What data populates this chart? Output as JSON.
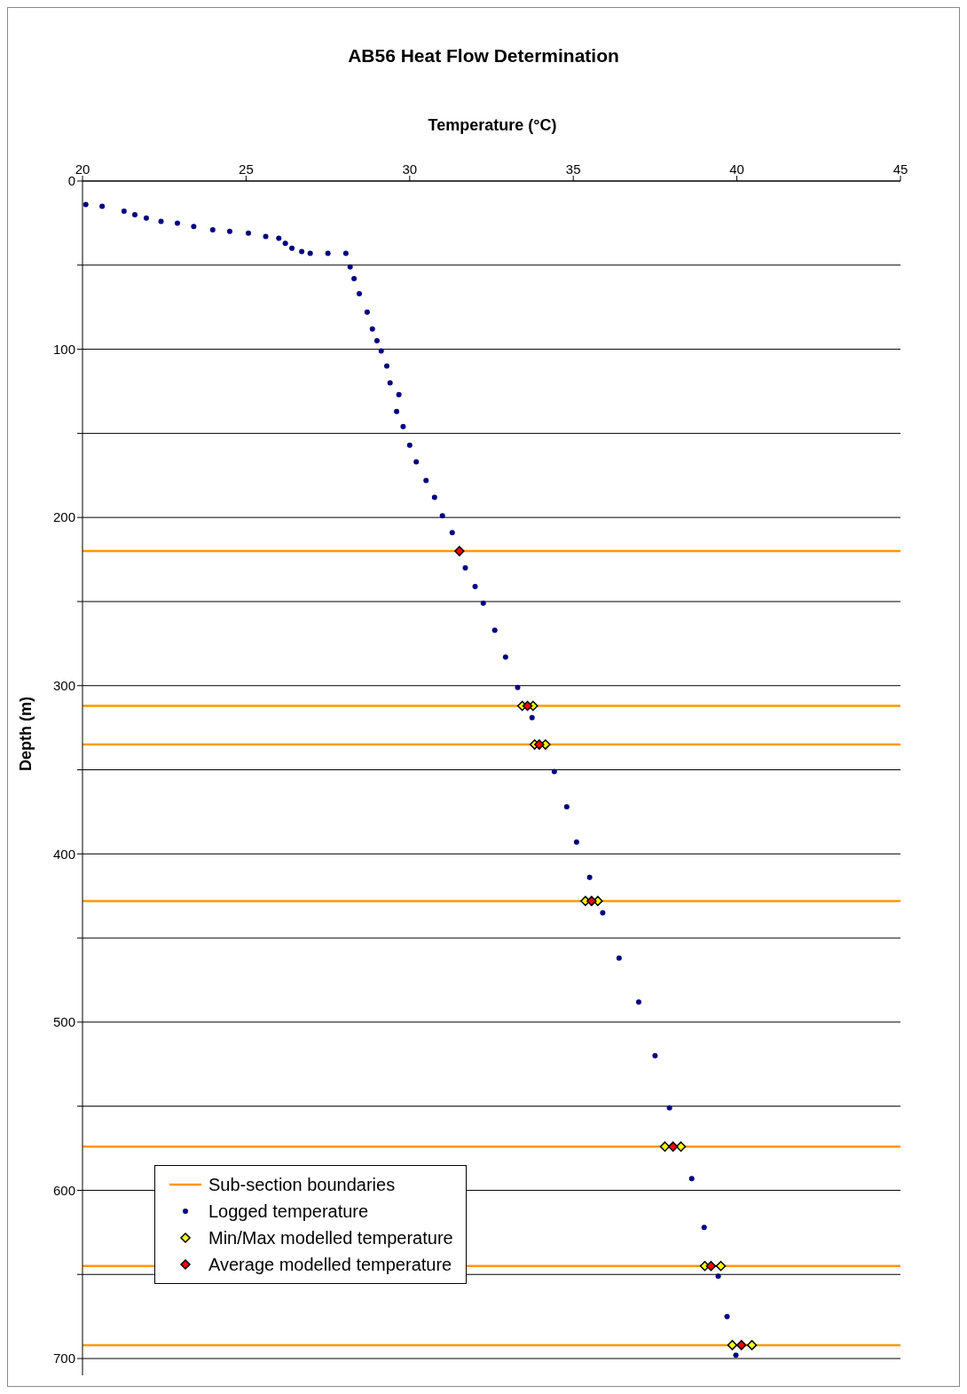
{
  "chart_data": {
    "type": "scatter",
    "title": "AB56 Heat Flow Determination",
    "xlabel": "Temperature (°C)",
    "ylabel": "Depth (m)",
    "xlim": [
      20,
      45
    ],
    "xticks": [
      20,
      25,
      30,
      35,
      40,
      45
    ],
    "ylim": [
      710,
      0
    ],
    "yticks": [
      0,
      {
        "value": 50,
        "label": null
      },
      100,
      {
        "value": 150,
        "label": null
      },
      200,
      {
        "value": 250,
        "label": null
      },
      300,
      {
        "value": 350,
        "label": null
      },
      400,
      {
        "value": 450,
        "label": null
      },
      500,
      {
        "value": 550,
        "label": null
      },
      600,
      {
        "value": 650,
        "label": null
      },
      700
    ],
    "grid": "y",
    "legend": "bottom left",
    "ref_lines": [
      {
        "axis": "y",
        "value": 220,
        "label": "Sub-section boundaries",
        "color": "#ff9900"
      },
      {
        "axis": "y",
        "value": 312,
        "color": "#ff9900"
      },
      {
        "axis": "y",
        "value": 335,
        "color": "#ff9900"
      },
      {
        "axis": "y",
        "value": 428,
        "color": "#ff9900"
      },
      {
        "axis": "y",
        "value": 574,
        "color": "#ff9900"
      },
      {
        "axis": "y",
        "value": 645,
        "color": "#ff9900"
      },
      {
        "axis": "y",
        "value": 692,
        "color": "#ff9900"
      }
    ],
    "series": [
      {
        "name": "Logged temperature",
        "marker": "circle",
        "color": "#000080",
        "x": [
          20.1,
          20.6,
          21.27,
          21.6,
          21.95,
          22.4,
          22.9,
          23.4,
          23.98,
          24.5,
          25.07,
          25.6,
          26.0,
          26.2,
          26.4,
          26.7,
          26.96,
          27.5,
          28.05,
          28.18,
          28.3,
          28.46,
          28.7,
          28.86,
          29.0,
          29.13,
          29.3,
          29.4,
          29.67,
          29.6,
          29.8,
          30.0,
          30.2,
          30.5,
          30.76,
          31.0,
          31.3,
          31.7,
          32.0,
          32.25,
          32.6,
          32.93,
          33.3,
          33.74,
          34.42,
          34.8,
          35.1,
          35.5,
          35.9,
          36.4,
          37.0,
          37.5,
          37.94,
          38.62,
          39.0,
          39.43,
          39.7,
          39.97
        ],
        "values": [
          14,
          15,
          18,
          20,
          22,
          24,
          25,
          27,
          29,
          30,
          31,
          33,
          34,
          37,
          40,
          42,
          43,
          43,
          43,
          51,
          58,
          67,
          78,
          88,
          95,
          101,
          110,
          120,
          127,
          137,
          146,
          157,
          167,
          178,
          188,
          199,
          209,
          230,
          241,
          251,
          267,
          283,
          301,
          319,
          351,
          372,
          393,
          414,
          435,
          462,
          488,
          520,
          551,
          593,
          622,
          651,
          675,
          698
        ]
      },
      {
        "name": "Min/Max modelled temperature",
        "marker": "diamond",
        "color": "#ffff00",
        "x": [
          33.44,
          33.77,
          33.82,
          34.15,
          35.37,
          35.75,
          37.8,
          38.29,
          39.02,
          39.51,
          39.86,
          40.46
        ],
        "values": [
          312,
          312,
          335,
          335,
          428,
          428,
          574,
          574,
          645,
          645,
          692,
          692
        ]
      },
      {
        "name": "Average modelled temperature",
        "marker": "diamond",
        "color": "#ff0000",
        "x": [
          31.52,
          33.6,
          33.96,
          35.56,
          38.05,
          39.21,
          40.14
        ],
        "values": [
          220,
          312,
          335,
          428,
          574,
          645,
          692
        ]
      }
    ]
  }
}
